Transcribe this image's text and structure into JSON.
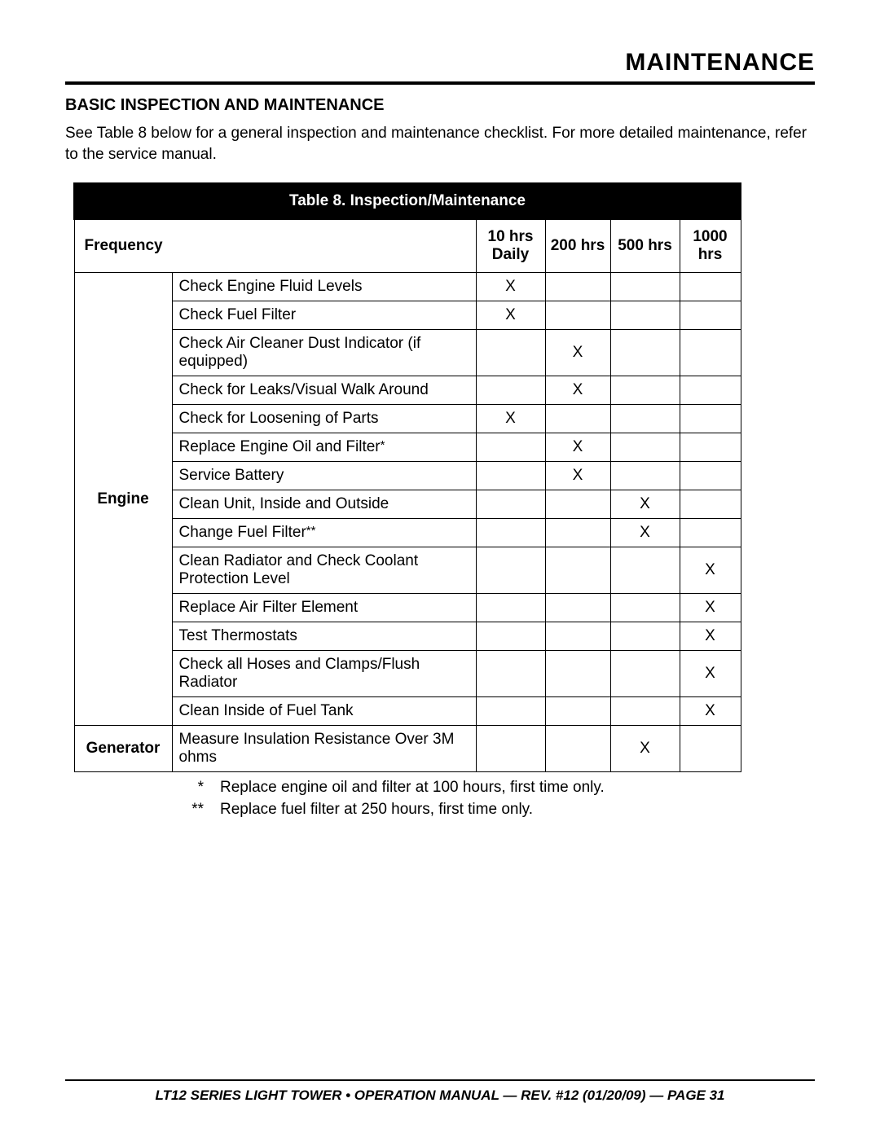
{
  "page": {
    "section_title": "MAINTENANCE",
    "subheading": "BASIC INSPECTION AND MAINTENANCE",
    "intro": "See Table 8 below for a general inspection and maintenance checklist. For more detailed maintenance, refer to the service manual.",
    "footer": "LT12 SERIES LIGHT TOWER • OPERATION MANUAL — REV. #12 (01/20/09) — PAGE 31"
  },
  "table": {
    "title": "Table 8.  Inspection/Maintenance",
    "frequency_label": "Frequency",
    "columns": [
      "10 hrs Daily",
      "200 hrs",
      "500 hrs",
      "1000 hrs"
    ],
    "categories": [
      {
        "name": "Engine",
        "rows": [
          {
            "item": "Check Engine Fluid Levels",
            "marks": [
              "X",
              "",
              "",
              ""
            ]
          },
          {
            "item": "Check Fuel Filter",
            "marks": [
              "X",
              "",
              "",
              ""
            ]
          },
          {
            "item": "Check Air Cleaner Dust Indicator (if equipped)",
            "marks": [
              "",
              "X",
              "",
              ""
            ]
          },
          {
            "item": "Check for Leaks/Visual Walk Around",
            "marks": [
              "",
              "X",
              "",
              ""
            ]
          },
          {
            "item": "Check for Loosening of Parts",
            "marks": [
              "X",
              "",
              "",
              ""
            ]
          },
          {
            "item": "Replace Engine Oil and Filter",
            "suffix": "*",
            "marks": [
              "",
              "X",
              "",
              ""
            ]
          },
          {
            "item": "Service Battery",
            "marks": [
              "",
              "X",
              "",
              ""
            ]
          },
          {
            "item": "Clean Unit, Inside and Outside",
            "marks": [
              "",
              "",
              "X",
              ""
            ]
          },
          {
            "item": "Change Fuel Filter",
            "suffix": "**",
            "marks": [
              "",
              "",
              "X",
              ""
            ]
          },
          {
            "item": "Clean Radiator and Check Coolant Protection Level",
            "marks": [
              "",
              "",
              "",
              "X"
            ]
          },
          {
            "item": "Replace Air Filter Element",
            "marks": [
              "",
              "",
              "",
              "X"
            ]
          },
          {
            "item": "Test Thermostats",
            "marks": [
              "",
              "",
              "",
              "X"
            ]
          },
          {
            "item": "Check all Hoses and Clamps/Flush Radiator",
            "marks": [
              "",
              "",
              "",
              "X"
            ]
          },
          {
            "item": "Clean Inside of Fuel Tank",
            "marks": [
              "",
              "",
              "",
              "X"
            ]
          }
        ]
      },
      {
        "name": "Generator",
        "rows": [
          {
            "item": "Measure Insulation Resistance Over 3M ohms",
            "marks": [
              "",
              "",
              "X",
              ""
            ]
          }
        ]
      }
    ],
    "footnotes": [
      {
        "symbol": "*",
        "text": "Replace engine oil and ﬁlter at 100 hours, ﬁrst time only."
      },
      {
        "symbol": "**",
        "text": "Replace fuel ﬁlter at 250 hours, ﬁrst time only."
      }
    ]
  },
  "style": {
    "colors": {
      "text": "#000000",
      "bg": "#ffffff",
      "table_header_bg": "#000000",
      "table_header_fg": "#ffffff",
      "border": "#000000"
    },
    "fonts": {
      "title_size_pt": 22,
      "body_size_pt": 14,
      "footer_size_pt": 12
    }
  }
}
